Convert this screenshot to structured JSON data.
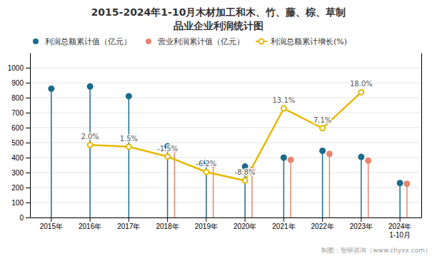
{
  "chart_data": {
    "type": "lollipop",
    "title": "2015-2024年1-10月木材加工和木、竹、藤、棕、草制\n品业企业利润统计图",
    "categories": [
      "2015年",
      "2016年",
      "2017年",
      "2018年",
      "2019年",
      "2020年",
      "2021年",
      "2022年",
      "2023年",
      "2024年\n1-10月"
    ],
    "series": [
      {
        "name": "利润总额累计值（亿元）",
        "type": "lollipop",
        "marker": "circle",
        "color": "#1b6b8a",
        "values": [
          860,
          875,
          810,
          475,
          365,
          340,
          400,
          445,
          405,
          230
        ]
      },
      {
        "name": "营业利润累计值（亿元）",
        "type": "lollipop",
        "marker": "circle",
        "color": "#e8856e",
        "values": [
          null,
          null,
          null,
          460,
          355,
          318,
          385,
          425,
          380,
          225
        ]
      },
      {
        "name": "利润总额累计增长(%)",
        "type": "line",
        "marker": "circle",
        "axis": "y2",
        "color": "#e6b800",
        "data_labels": true,
        "values": [
          null,
          2.0,
          1.5,
          -1.5,
          -6.2,
          -8.8,
          13.1,
          7.1,
          18.0,
          null
        ],
        "value_labels": [
          null,
          "2.0%",
          "1.5%",
          "-1.5%",
          "-6.2%",
          "-8.8%",
          "13.1%",
          "7.1%",
          "18.0%",
          null
        ]
      }
    ],
    "ylim": [
      0,
      1100
    ],
    "yticks": [
      0,
      100,
      200,
      300,
      400,
      500,
      600,
      700,
      800,
      900,
      1000
    ],
    "y2lim": [
      -20,
      30
    ],
    "y2ticks": [],
    "grid": true,
    "legend": "top",
    "annotations": [
      "制图：智研咨询（www.chyxx.com）"
    ]
  }
}
